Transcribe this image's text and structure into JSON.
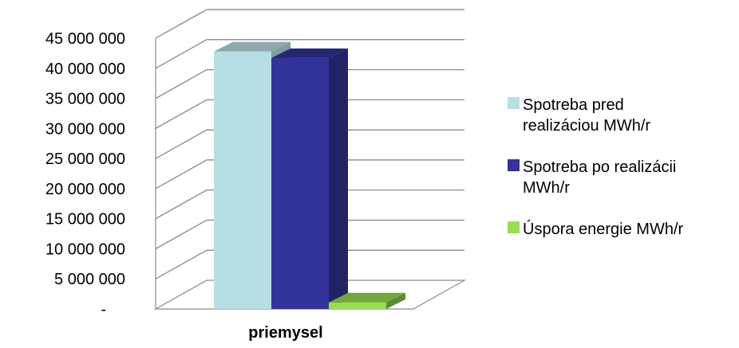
{
  "chart_data": {
    "type": "bar",
    "style": "3d-clustered-column",
    "categories": [
      "priemysel"
    ],
    "series": [
      {
        "name": "Spotreba pred realizáciou MWh/r",
        "name_lines": [
          "Spotreba pred",
          "realizáciou MWh/r"
        ],
        "values": [
          42800000
        ],
        "color": "#b7dfe3",
        "top_color": "#8fa9ab",
        "side_color": "#7e9ea1"
      },
      {
        "name": "Spotreba po realizácii MWh/r",
        "name_lines": [
          "Spotreba po realizácii",
          "MWh/r"
        ],
        "values": [
          41700000
        ],
        "color": "#333399",
        "top_color": "#262673",
        "side_color": "#222266"
      },
      {
        "name": "Úspora energie MWh/r",
        "name_lines": [
          "Úspora energie MWh/r"
        ],
        "values": [
          1100000
        ],
        "color": "#99dd55",
        "top_color": "#72a63f",
        "side_color": "#5f8a35"
      }
    ],
    "y_ticks": [
      "-",
      "5 000 000",
      "10 000 000",
      "15 000 000",
      "20 000 000",
      "25 000 000",
      "30 000 000",
      "35 000 000",
      "40 000 000",
      "45 000 000"
    ],
    "ylim": [
      0,
      45000000
    ],
    "ystep": 5000000,
    "grid": true,
    "legend_position": "right",
    "title": "",
    "xlabel": "",
    "ylabel": ""
  }
}
